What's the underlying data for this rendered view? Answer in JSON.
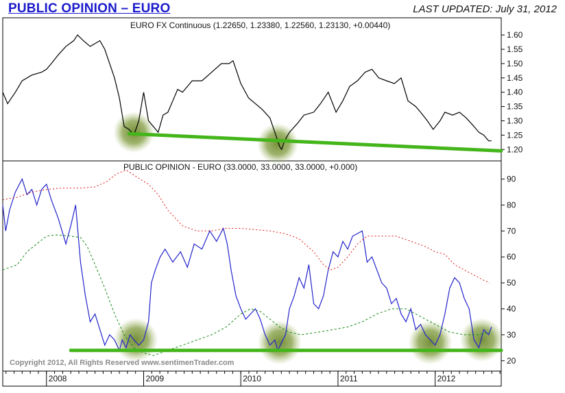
{
  "header": {
    "title": "PUBLIC OPINION – EURO",
    "updated": "LAST UPDATED:  July 31, 2012"
  },
  "footer": {
    "copyright": "Copyright 2012, All Rights Reserved  www.sentimenTrader.com"
  },
  "colors": {
    "price": "#000000",
    "opinion": "#2222cc",
    "upper_band": "#dd1111",
    "lower_band": "#118811",
    "trendline": "#44b51a",
    "highlight": "#6e8a2e"
  },
  "chart_data": [
    {
      "type": "line",
      "title": "EURO FX Continuous (1.22650, 1.23380, 1.22560, 1.23130, +0.00440)",
      "x_ticks": [
        "2008",
        "2009",
        "2010",
        "2011",
        "2012"
      ],
      "x_range": [
        2007.55,
        2012.68
      ],
      "ylim": [
        1.16,
        1.66
      ],
      "y_ticks": [
        "1.20",
        "1.25",
        "1.30",
        "1.35",
        "1.40",
        "1.45",
        "1.50",
        "1.55",
        "1.60"
      ],
      "series": [
        {
          "role": "price",
          "x": [
            2007.55,
            2007.6,
            2007.68,
            2007.75,
            2007.85,
            2007.95,
            2008.0,
            2008.05,
            2008.12,
            2008.2,
            2008.28,
            2008.32,
            2008.38,
            2008.45,
            2008.5,
            2008.55,
            2008.6,
            2008.65,
            2008.7,
            2008.75,
            2008.8,
            2008.85,
            2008.9,
            2008.95,
            2009.0,
            2009.05,
            2009.1,
            2009.15,
            2009.2,
            2009.25,
            2009.3,
            2009.35,
            2009.4,
            2009.45,
            2009.5,
            2009.6,
            2009.7,
            2009.8,
            2009.88,
            2009.92,
            2010.0,
            2010.08,
            2010.15,
            2010.22,
            2010.3,
            2010.36,
            2010.4,
            2010.42,
            2010.45,
            2010.5,
            2010.58,
            2010.65,
            2010.75,
            2010.82,
            2010.9,
            2010.98,
            2011.05,
            2011.12,
            2011.2,
            2011.28,
            2011.35,
            2011.42,
            2011.5,
            2011.58,
            2011.65,
            2011.72,
            2011.8,
            2011.85,
            2011.92,
            2011.98,
            2012.05,
            2012.1,
            2012.18,
            2012.25,
            2012.32,
            2012.4,
            2012.45,
            2012.5,
            2012.55,
            2012.58
          ],
          "y": [
            1.4,
            1.36,
            1.4,
            1.44,
            1.46,
            1.47,
            1.48,
            1.5,
            1.53,
            1.56,
            1.58,
            1.6,
            1.58,
            1.56,
            1.57,
            1.58,
            1.55,
            1.5,
            1.45,
            1.38,
            1.28,
            1.27,
            1.25,
            1.3,
            1.4,
            1.3,
            1.28,
            1.26,
            1.32,
            1.33,
            1.37,
            1.41,
            1.4,
            1.42,
            1.44,
            1.44,
            1.47,
            1.5,
            1.5,
            1.51,
            1.43,
            1.38,
            1.36,
            1.34,
            1.31,
            1.25,
            1.21,
            1.2,
            1.23,
            1.26,
            1.29,
            1.32,
            1.33,
            1.36,
            1.4,
            1.33,
            1.37,
            1.42,
            1.44,
            1.47,
            1.48,
            1.45,
            1.44,
            1.43,
            1.45,
            1.37,
            1.35,
            1.33,
            1.3,
            1.27,
            1.3,
            1.33,
            1.32,
            1.33,
            1.31,
            1.28,
            1.26,
            1.25,
            1.23,
            1.23
          ]
        },
        {
          "role": "trendline",
          "x": [
            2008.85,
            2012.68
          ],
          "y": [
            1.255,
            1.195
          ]
        }
      ],
      "highlights": [
        {
          "x": 2008.9,
          "y": 1.26
        },
        {
          "x": 2010.38,
          "y": 1.22
        }
      ]
    },
    {
      "type": "line",
      "title": "PUBLIC OPINION - EURO (33.0000, 33.0000, 33.0000, +0.000)",
      "x_ticks": [
        "2008",
        "2009",
        "2010",
        "2011",
        "2012"
      ],
      "x_range": [
        2007.55,
        2012.68
      ],
      "ylim": [
        16,
        97
      ],
      "y_ticks": [
        "20",
        "30",
        "40",
        "50",
        "60",
        "70",
        "80",
        "90"
      ],
      "series": [
        {
          "role": "opinion",
          "x": [
            2007.55,
            2007.58,
            2007.62,
            2007.68,
            2007.75,
            2007.8,
            2007.85,
            2007.9,
            2007.95,
            2008.0,
            2008.05,
            2008.12,
            2008.2,
            2008.25,
            2008.3,
            2008.35,
            2008.4,
            2008.45,
            2008.5,
            2008.55,
            2008.6,
            2008.65,
            2008.7,
            2008.75,
            2008.78,
            2008.82,
            2008.86,
            2008.9,
            2008.95,
            2009.0,
            2009.05,
            2009.08,
            2009.12,
            2009.17,
            2009.22,
            2009.3,
            2009.38,
            2009.45,
            2009.52,
            2009.6,
            2009.68,
            2009.75,
            2009.82,
            2009.86,
            2009.9,
            2009.95,
            2010.0,
            2010.05,
            2010.1,
            2010.15,
            2010.2,
            2010.25,
            2010.3,
            2010.35,
            2010.38,
            2010.42,
            2010.46,
            2010.5,
            2010.55,
            2010.6,
            2010.65,
            2010.7,
            2010.75,
            2010.8,
            2010.85,
            2010.9,
            2010.95,
            2011.0,
            2011.05,
            2011.1,
            2011.15,
            2011.2,
            2011.25,
            2011.3,
            2011.35,
            2011.4,
            2011.45,
            2011.5,
            2011.55,
            2011.6,
            2011.65,
            2011.7,
            2011.75,
            2011.8,
            2011.85,
            2011.9,
            2011.95,
            2012.0,
            2012.05,
            2012.1,
            2012.15,
            2012.2,
            2012.25,
            2012.3,
            2012.35,
            2012.4,
            2012.45,
            2012.5,
            2012.55,
            2012.58
          ],
          "y": [
            80,
            70,
            78,
            85,
            90,
            84,
            86,
            80,
            86,
            88,
            82,
            75,
            65,
            72,
            80,
            58,
            45,
            35,
            38,
            32,
            26,
            30,
            28,
            24,
            28,
            25,
            30,
            28,
            26,
            28,
            35,
            50,
            55,
            60,
            63,
            58,
            62,
            56,
            65,
            63,
            70,
            66,
            71,
            65,
            55,
            45,
            40,
            36,
            38,
            40,
            36,
            30,
            26,
            28,
            24,
            27,
            30,
            40,
            45,
            52,
            48,
            57,
            42,
            40,
            45,
            55,
            62,
            60,
            66,
            63,
            68,
            69,
            70,
            58,
            60,
            55,
            50,
            48,
            42,
            44,
            38,
            35,
            40,
            32,
            34,
            30,
            28,
            26,
            30,
            38,
            48,
            52,
            50,
            44,
            40,
            28,
            25,
            32,
            30,
            33
          ]
        },
        {
          "role": "upper_band",
          "x": [
            2007.55,
            2007.7,
            2007.85,
            2008.0,
            2008.15,
            2008.35,
            2008.5,
            2008.62,
            2008.72,
            2008.82,
            2008.92,
            2009.05,
            2009.15,
            2009.25,
            2009.4,
            2009.55,
            2009.7,
            2009.85,
            2010.0,
            2010.15,
            2010.3,
            2010.45,
            2010.6,
            2010.75,
            2010.85,
            2010.92,
            2011.0,
            2011.1,
            2011.2,
            2011.3,
            2011.45,
            2011.6,
            2011.75,
            2011.9,
            2012.0,
            2012.1,
            2012.2,
            2012.3,
            2012.4,
            2012.5,
            2012.56
          ],
          "y": [
            82,
            83,
            85,
            86,
            86.5,
            86.5,
            87,
            89,
            92,
            93.5,
            91,
            88,
            84,
            78,
            72,
            70,
            70,
            71,
            71,
            70.5,
            70,
            69,
            67,
            62,
            57,
            55,
            56,
            60,
            65,
            68,
            68,
            68,
            66,
            64,
            62,
            61,
            57,
            55,
            53,
            51,
            50
          ]
        },
        {
          "role": "lower_band",
          "x": [
            2007.55,
            2007.7,
            2007.8,
            2007.9,
            2008.0,
            2008.1,
            2008.25,
            2008.35,
            2008.42,
            2008.5,
            2008.6,
            2008.7,
            2008.8,
            2008.9,
            2009.0,
            2009.1,
            2009.25,
            2009.4,
            2009.55,
            2009.7,
            2009.85,
            2010.0,
            2010.1,
            2010.2,
            2010.3,
            2010.4,
            2010.5,
            2010.62,
            2010.8,
            2010.95,
            2011.1,
            2011.25,
            2011.4,
            2011.55,
            2011.7,
            2011.85,
            2011.95,
            2012.05,
            2012.15,
            2012.3,
            2012.45,
            2012.56
          ],
          "y": [
            55,
            57,
            62,
            65,
            68,
            68.5,
            68,
            67.5,
            64,
            57,
            48,
            38,
            30,
            25,
            23,
            22,
            24,
            26,
            28,
            30,
            33,
            38,
            40,
            39,
            36,
            33,
            31,
            30,
            31,
            32,
            33,
            35,
            38,
            40,
            40,
            37,
            35,
            33,
            31,
            30,
            30,
            31
          ]
        },
        {
          "role": "trendline",
          "x": [
            2008.25,
            2012.68
          ],
          "y": [
            24,
            24
          ]
        }
      ],
      "highlights": [
        {
          "x": 2008.92,
          "y": 28
        },
        {
          "x": 2010.4,
          "y": 27
        },
        {
          "x": 2011.95,
          "y": 27
        },
        {
          "x": 2012.48,
          "y": 28
        }
      ]
    }
  ]
}
